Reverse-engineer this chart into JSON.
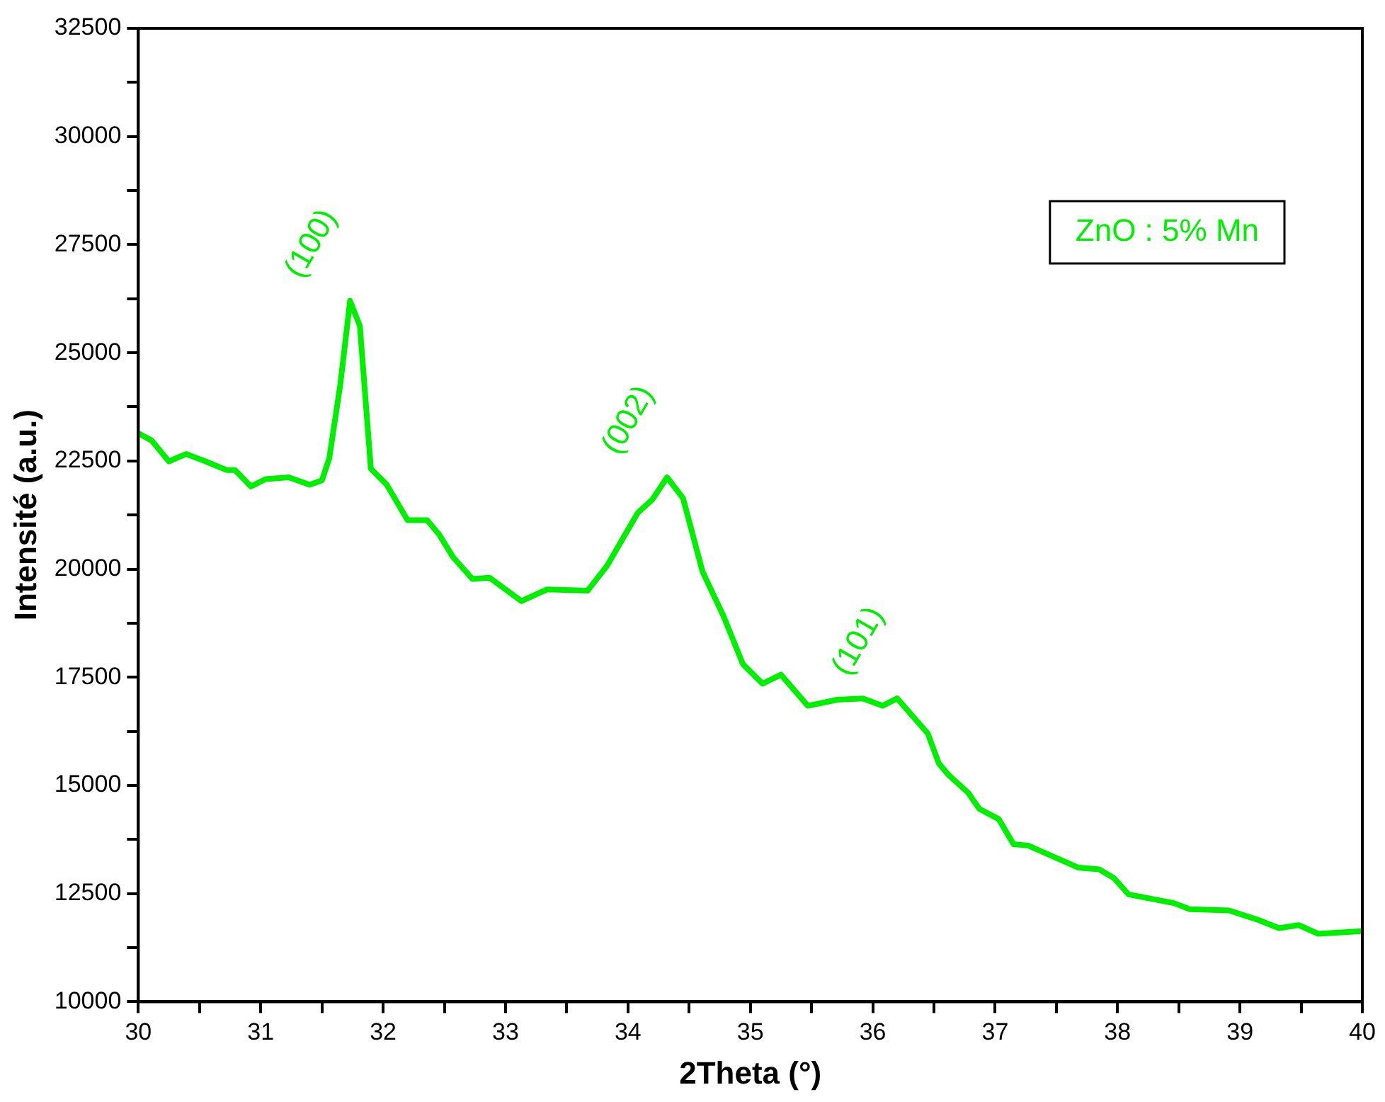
{
  "chart_data": {
    "type": "line",
    "xlabel": "2Theta (°)",
    "ylabel": "Intensité (a.u.)",
    "xlim": [
      30,
      40
    ],
    "xticks": [
      30,
      {
        "value": 30.5,
        "label": null
      },
      31,
      {
        "value": 31.5,
        "label": null
      },
      32,
      {
        "value": 32.5,
        "label": null
      },
      33,
      {
        "value": 33.5,
        "label": null
      },
      34,
      {
        "value": 34.5,
        "label": null
      },
      35,
      {
        "value": 35.5,
        "label": null
      },
      36,
      {
        "value": 36.5,
        "label": null
      },
      37,
      {
        "value": 37.5,
        "label": null
      },
      38,
      {
        "value": 38.5,
        "label": null
      },
      39,
      {
        "value": 39.5,
        "label": null
      },
      40
    ],
    "ylim": [
      10000,
      32500
    ],
    "yticks": [
      10000,
      {
        "value": 11250,
        "label": null
      },
      12500,
      {
        "value": 13750,
        "label": null
      },
      15000,
      {
        "value": 16250,
        "label": null
      },
      17500,
      {
        "value": 18750,
        "label": null
      },
      20000,
      {
        "value": 21250,
        "label": null
      },
      22500,
      {
        "value": 23750,
        "label": null
      },
      25000,
      {
        "value": 26250,
        "label": null
      },
      27500,
      {
        "value": 28750,
        "label": null
      },
      30000,
      {
        "value": 31250,
        "label": null
      },
      32500
    ],
    "grid": false,
    "legend": "top right",
    "marker": "none",
    "line_style": "solid",
    "series": [
      {
        "name": "ZnO : 5% Mn",
        "color": "#00ee00",
        "x": [
          30,
          30.11,
          30.25,
          30.39,
          30.55,
          30.72,
          30.79,
          30.92,
          31.04,
          31.23,
          31.4,
          31.5,
          31.56,
          31.65,
          31.73,
          31.81,
          31.9,
          32.03,
          32.2,
          32.36,
          32.46,
          32.57,
          32.73,
          32.87,
          33.13,
          33.34,
          33.67,
          33.83,
          34.08,
          34.2,
          34.32,
          34.45,
          34.61,
          34.78,
          34.94,
          35.1,
          35.25,
          35.47,
          35.71,
          35.92,
          36.08,
          36.2,
          36.45,
          36.54,
          36.62,
          36.78,
          36.87,
          37.03,
          37.15,
          37.27,
          37.68,
          37.85,
          37.97,
          38.09,
          38.46,
          38.59,
          38.91,
          39.14,
          39.32,
          39.48,
          39.64,
          40
        ],
        "values": [
          23140,
          22970,
          22490,
          22660,
          22490,
          22290,
          22290,
          21910,
          22080,
          22120,
          21950,
          22050,
          22560,
          24260,
          26200,
          25620,
          22320,
          21950,
          21130,
          21130,
          20790,
          20280,
          19770,
          19800,
          19260,
          19530,
          19500,
          20080,
          21300,
          21610,
          22120,
          21640,
          19940,
          18920,
          17800,
          17350,
          17560,
          16840,
          16980,
          17010,
          16840,
          17010,
          16200,
          15510,
          15240,
          14830,
          14460,
          14220,
          13640,
          13610,
          13100,
          13060,
          12860,
          12480,
          12280,
          12140,
          12110,
          11900,
          11700,
          11770,
          11570,
          11630
        ]
      }
    ],
    "annotations": [
      {
        "text": "(100)",
        "x": 31.73,
        "y": 26200
      },
      {
        "text": "(002)",
        "x": 34.32,
        "y": 22120
      },
      {
        "text": "(101)",
        "x": 36.2,
        "y": 17010
      }
    ]
  }
}
